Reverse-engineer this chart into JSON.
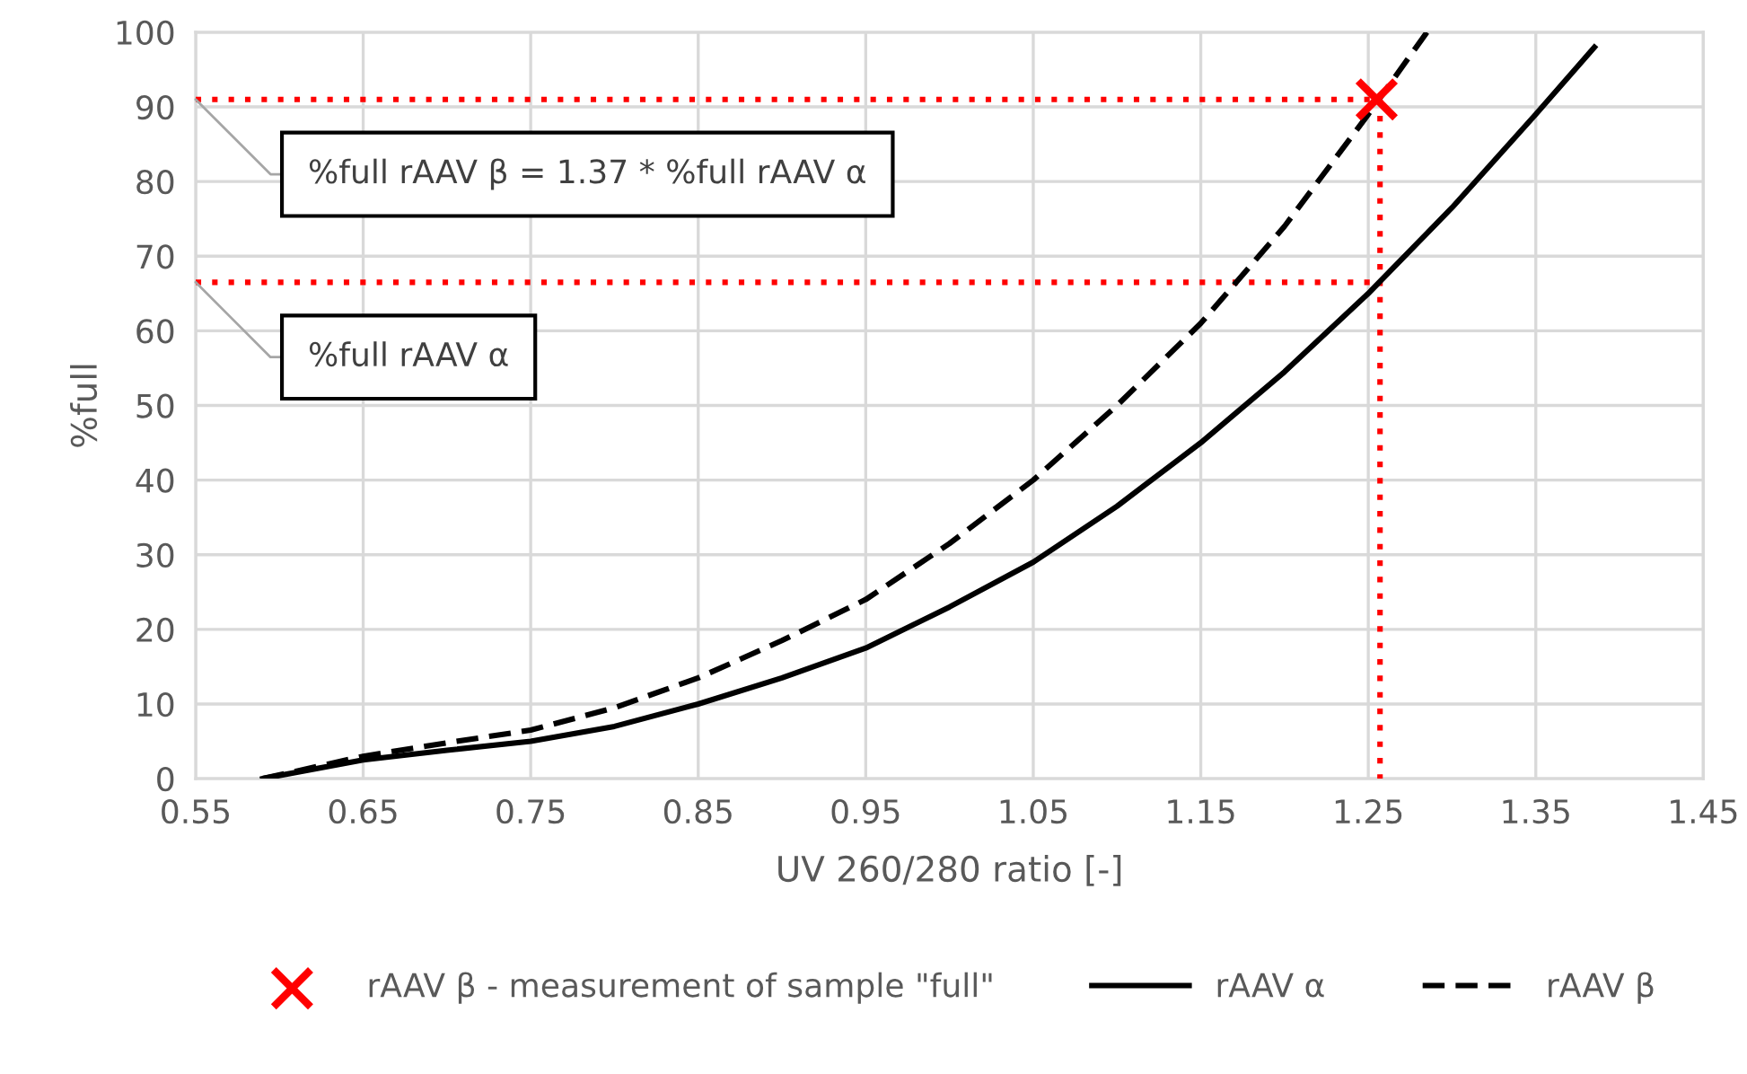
{
  "chart_data": {
    "type": "line",
    "xlabel": "UV 260/280 ratio [-]",
    "ylabel": "%full",
    "xlim": [
      0.55,
      1.45
    ],
    "xticks": [
      0.55,
      0.65,
      0.75,
      0.85,
      0.95,
      1.05,
      1.15,
      1.25,
      1.35,
      1.45
    ],
    "ylim": [
      0,
      100
    ],
    "yticks": [
      0,
      10,
      20,
      30,
      40,
      50,
      60,
      70,
      80,
      90,
      100
    ],
    "grid": true,
    "legend": "bottom",
    "series": [
      {
        "name": "rAAV β - measurement of sample \"full\"",
        "type": "scatter",
        "marker": "cross",
        "color": "#ff0000",
        "x": [
          1.255
        ],
        "values": [
          91
        ]
      },
      {
        "name": "rAAV α",
        "line_style": "solid",
        "color": "#000000",
        "x": [
          0.59,
          0.65,
          0.7,
          0.75,
          0.8,
          0.85,
          0.9,
          0.95,
          1.0,
          1.05,
          1.1,
          1.15,
          1.2,
          1.25,
          1.3,
          1.35,
          1.385
        ],
        "values": [
          0,
          2.5,
          3.8,
          5,
          7,
          10,
          13.5,
          17.5,
          23,
          29,
          36.5,
          45,
          54.5,
          65,
          76.5,
          89,
          98
        ]
      },
      {
        "name": "rAAV β",
        "line_style": "dashed",
        "color": "#000000",
        "x": [
          0.59,
          0.65,
          0.7,
          0.75,
          0.8,
          0.85,
          0.9,
          0.95,
          1.0,
          1.05,
          1.1,
          1.15,
          1.2,
          1.25,
          1.285
        ],
        "values": [
          0,
          3,
          4.8,
          6.5,
          9.5,
          13.5,
          18.5,
          24,
          31.5,
          40,
          50,
          61,
          74,
          89,
          100
        ]
      },
      {
        "line_style": "dotted",
        "color": "#ff0000",
        "x": [
          0.55,
          1.255
        ],
        "values": [
          91,
          91
        ]
      },
      {
        "line_style": "dotted",
        "color": "#ff0000",
        "x": [
          0.55,
          1.257
        ],
        "values": [
          66.5,
          66.5
        ]
      },
      {
        "line_style": "dotted",
        "color": "#ff0000",
        "x": [
          1.257,
          1.257
        ],
        "values": [
          91,
          0
        ]
      }
    ],
    "annotations": [
      {
        "text": "%full rAAV β = 1.37 * %full rAAV α",
        "x": 0.55,
        "y": 91
      },
      {
        "text": "%full rAAV α",
        "x": 0.55,
        "y": 66.5
      }
    ]
  }
}
